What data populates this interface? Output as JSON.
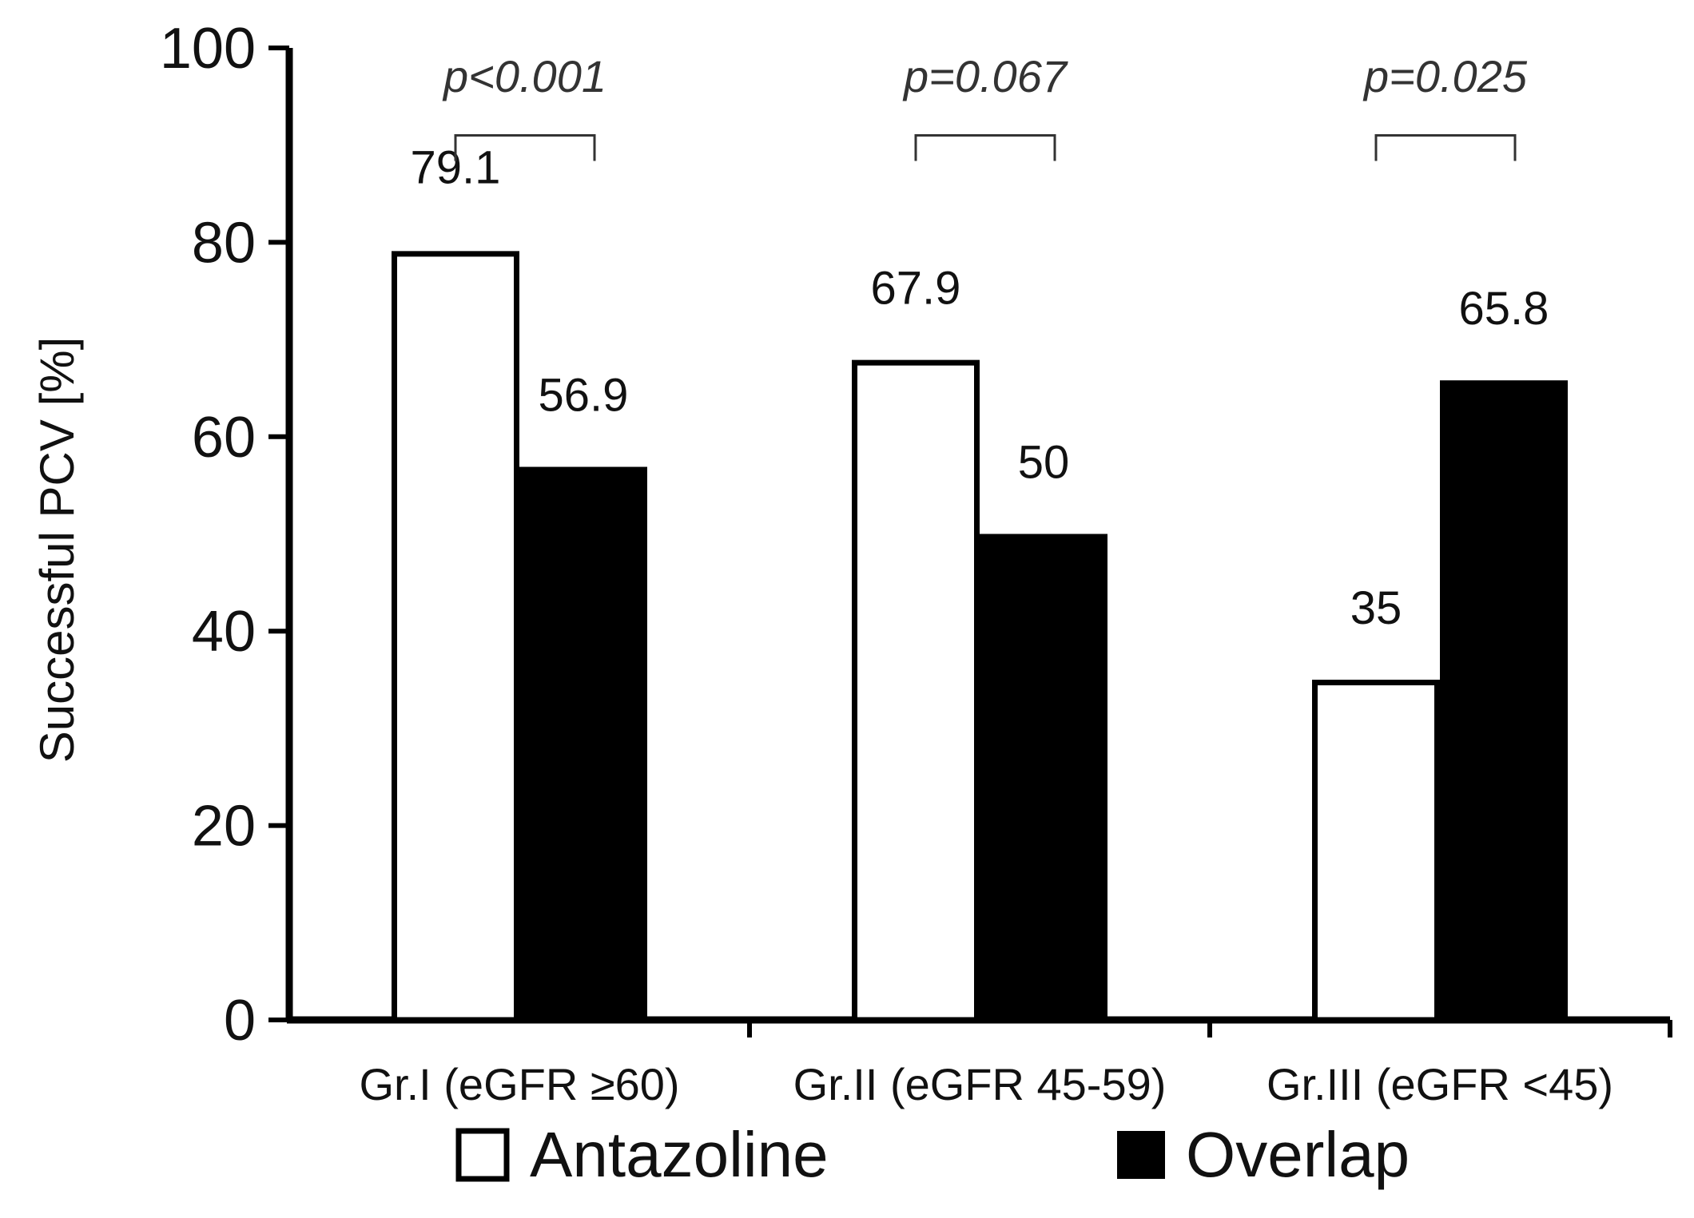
{
  "chart_data": {
    "type": "bar",
    "title": "",
    "xlabel": "",
    "ylabel": "Successful PCV [%]",
    "ylim": [
      0,
      100
    ],
    "yticks": [
      0,
      20,
      40,
      60,
      80,
      100
    ],
    "grid": false,
    "legend_position": "bottom",
    "categories": [
      "Gr.I (eGFR ≥60)",
      "Gr.II (eGFR 45-59)",
      "Gr.III (eGFR <45)"
    ],
    "series": [
      {
        "name": "Antazoline",
        "values": [
          79.1,
          67.9,
          35
        ],
        "labels": [
          "79.1",
          "67.9",
          "35"
        ],
        "color": "#ffffff",
        "stroke": "#000000"
      },
      {
        "name": "Overlap",
        "values": [
          56.9,
          50,
          65.8
        ],
        "labels": [
          "56.9",
          "50",
          "65.8"
        ],
        "color": "#000000",
        "stroke": "#000000"
      }
    ],
    "annotations": [
      {
        "category_index": 0,
        "text": "p<0.001"
      },
      {
        "category_index": 1,
        "text": "p=0.067"
      },
      {
        "category_index": 2,
        "text": "p=0.025"
      }
    ]
  }
}
